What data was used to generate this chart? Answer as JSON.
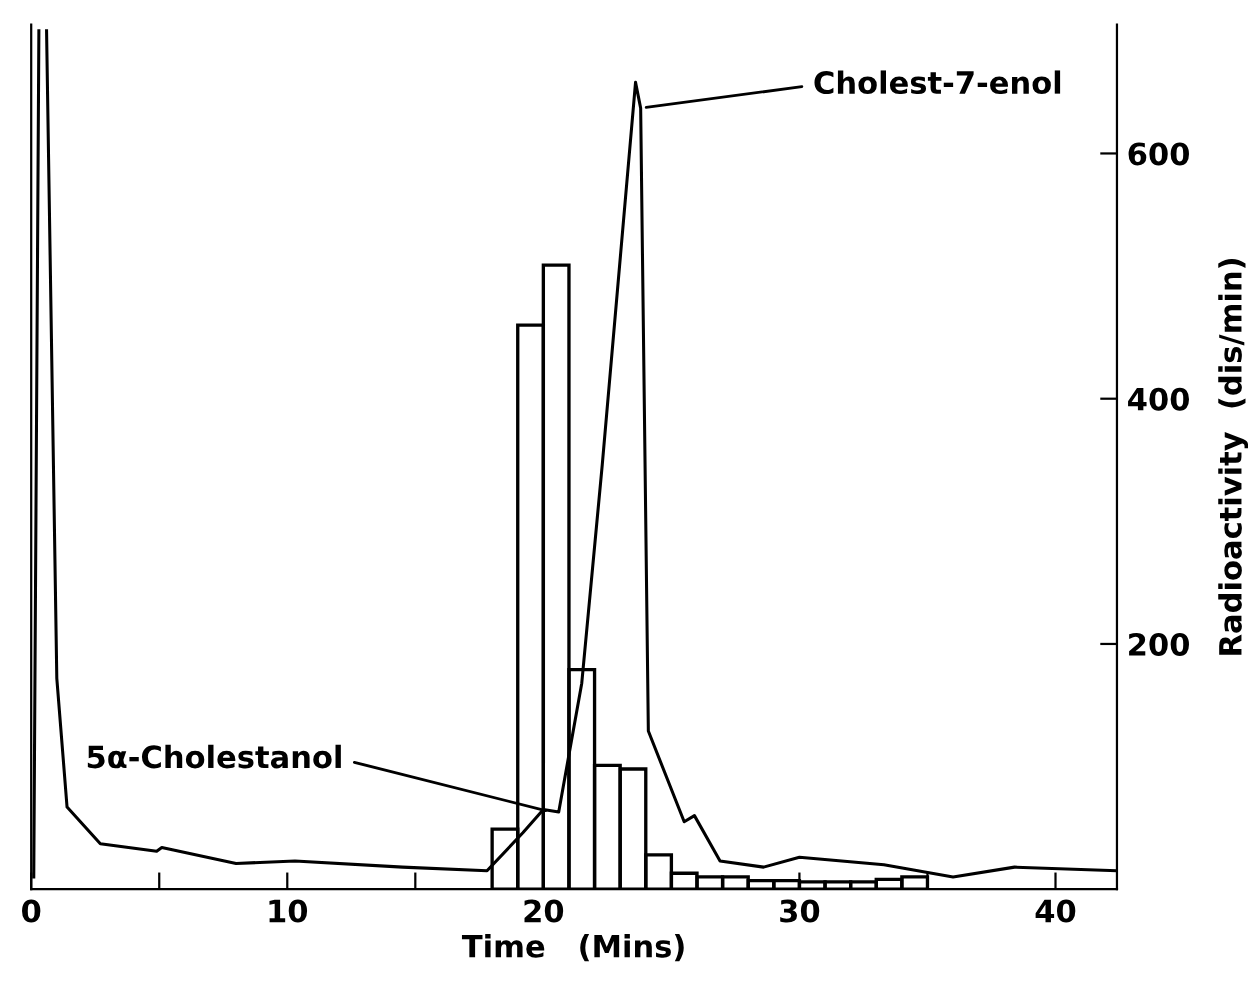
{
  "chart_data": {
    "type": "line",
    "xlabel": "Time   (Mins)",
    "ylabel": "Radioactivity  (dis/min)",
    "xlim": [
      0,
      42.4
    ],
    "ylim": [
      0,
      705
    ],
    "xticks": [
      0,
      {
        "value": 5,
        "label": null
      },
      10,
      {
        "value": 15,
        "label": null
      },
      20,
      {
        "value": 25,
        "label": null
      },
      30,
      {
        "value": 35,
        "label": null
      },
      40
    ],
    "yticks": [
      200,
      400,
      600
    ],
    "grid": false,
    "legend": false,
    "series": [
      {
        "type": "histogram",
        "color": "#000000",
        "bins": [
          18,
          19,
          20,
          21,
          22,
          23,
          24,
          25,
          26,
          27,
          28,
          29,
          30,
          31,
          32,
          33,
          34,
          35
        ],
        "values": [
          49,
          460,
          509,
          179,
          101,
          98,
          28,
          13,
          10,
          10,
          7,
          7,
          6,
          6,
          6,
          8,
          10
        ]
      },
      {
        "color": "#000000",
        "x": [
          0.1,
          0.3,
          0.45,
          0.6,
          1.0,
          1.4,
          2.7,
          4.9,
          5.1,
          8.0,
          10.3,
          14.5,
          17.8,
          19.2,
          20.0,
          20.6,
          21.5,
          22.3,
          23.6,
          23.8,
          24.1,
          25.5,
          25.9,
          26.9,
          28.6,
          30.0,
          33.3,
          36.0,
          38.4,
          42.4
        ],
        "values": [
          10,
          700,
          null,
          700,
          172,
          67,
          37,
          31,
          34,
          21,
          23,
          18,
          15,
          46,
          65,
          63,
          168,
          346,
          658,
          637,
          129,
          55,
          60,
          23,
          18,
          26,
          20,
          10,
          18,
          15
        ]
      }
    ],
    "annotations": [
      {
        "text": "Cholest-7-enol",
        "x": 23.8,
        "y": 637
      },
      {
        "text": "5α-Cholestanol",
        "x": 20.3,
        "y": 63
      }
    ]
  }
}
